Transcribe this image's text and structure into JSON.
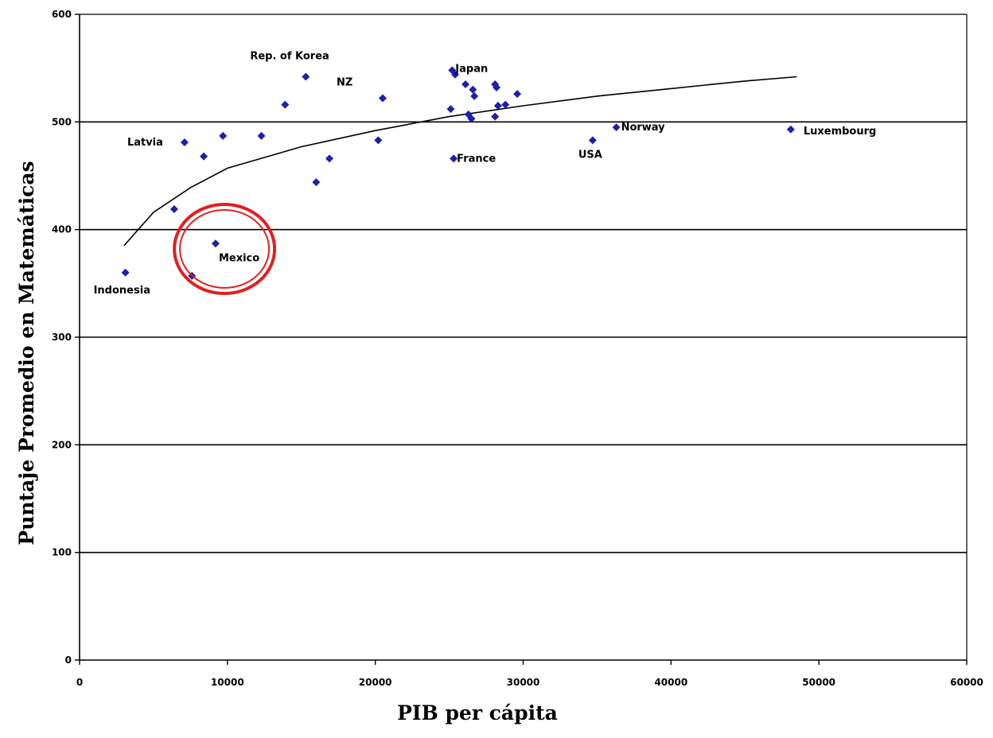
{
  "chart_data": {
    "type": "scatter",
    "xlabel": "PIB per cápita",
    "ylabel": "Puntaje Promedio en Matemáticas",
    "xlim": [
      0,
      60000
    ],
    "ylim": [
      0,
      600
    ],
    "x_ticks": [
      0,
      10000,
      20000,
      30000,
      40000,
      50000,
      60000
    ],
    "y_ticks": [
      0,
      100,
      200,
      300,
      400,
      500,
      600
    ],
    "x_tick_labels": [
      "0",
      "10000",
      "20000",
      "30000",
      "40000",
      "50000",
      "60000"
    ],
    "y_tick_labels": [
      "0",
      "100",
      "200",
      "300",
      "400",
      "500",
      "600"
    ],
    "grid": "horizontal",
    "legend": "none",
    "marker_color": "#1f1fa8",
    "points": [
      {
        "x": 3100,
        "y": 360,
        "label": "Indonesia"
      },
      {
        "x": 7600,
        "y": 357,
        "label": ""
      },
      {
        "x": 9200,
        "y": 387,
        "label": "Mexico"
      },
      {
        "x": 6400,
        "y": 419,
        "label": ""
      },
      {
        "x": 7100,
        "y": 481,
        "label": "Latvia"
      },
      {
        "x": 8400,
        "y": 468,
        "label": ""
      },
      {
        "x": 9700,
        "y": 487,
        "label": ""
      },
      {
        "x": 12300,
        "y": 487,
        "label": ""
      },
      {
        "x": 13900,
        "y": 516,
        "label": ""
      },
      {
        "x": 15300,
        "y": 542,
        "label": "Rep. of Korea"
      },
      {
        "x": 16000,
        "y": 444,
        "label": ""
      },
      {
        "x": 16900,
        "y": 466,
        "label": ""
      },
      {
        "x": 20200,
        "y": 483,
        "label": ""
      },
      {
        "x": 20500,
        "y": 522,
        "label": "NZ"
      },
      {
        "x": 25100,
        "y": 512,
        "label": ""
      },
      {
        "x": 25200,
        "y": 548,
        "label": "Japan"
      },
      {
        "x": 25400,
        "y": 544,
        "label": ""
      },
      {
        "x": 25300,
        "y": 466,
        "label": "France"
      },
      {
        "x": 26100,
        "y": 535,
        "label": ""
      },
      {
        "x": 26300,
        "y": 507,
        "label": ""
      },
      {
        "x": 26500,
        "y": 503,
        "label": ""
      },
      {
        "x": 26600,
        "y": 530,
        "label": ""
      },
      {
        "x": 26700,
        "y": 524,
        "label": ""
      },
      {
        "x": 28100,
        "y": 535,
        "label": ""
      },
      {
        "x": 28200,
        "y": 532,
        "label": ""
      },
      {
        "x": 28300,
        "y": 515,
        "label": ""
      },
      {
        "x": 28100,
        "y": 505,
        "label": ""
      },
      {
        "x": 28800,
        "y": 516,
        "label": ""
      },
      {
        "x": 29600,
        "y": 526,
        "label": ""
      },
      {
        "x": 34700,
        "y": 483,
        "label": "USA"
      },
      {
        "x": 36300,
        "y": 495,
        "label": "Norway"
      },
      {
        "x": 48100,
        "y": 493,
        "label": "Luxembourg"
      }
    ],
    "trendline": {
      "type": "logarithmic",
      "x_start": 3000,
      "x_end": 48500,
      "points": [
        {
          "x": 3000,
          "y": 385
        },
        {
          "x": 5000,
          "y": 416
        },
        {
          "x": 7500,
          "y": 439
        },
        {
          "x": 10000,
          "y": 457
        },
        {
          "x": 15000,
          "y": 477
        },
        {
          "x": 20000,
          "y": 492
        },
        {
          "x": 25000,
          "y": 505
        },
        {
          "x": 30000,
          "y": 515
        },
        {
          "x": 35000,
          "y": 524
        },
        {
          "x": 40000,
          "y": 531
        },
        {
          "x": 45000,
          "y": 538
        },
        {
          "x": 48500,
          "y": 542
        }
      ]
    },
    "annotation": {
      "type": "circle",
      "color": "#e02020",
      "target": "Mexico",
      "center": {
        "x": 9800,
        "y": 382
      }
    }
  }
}
